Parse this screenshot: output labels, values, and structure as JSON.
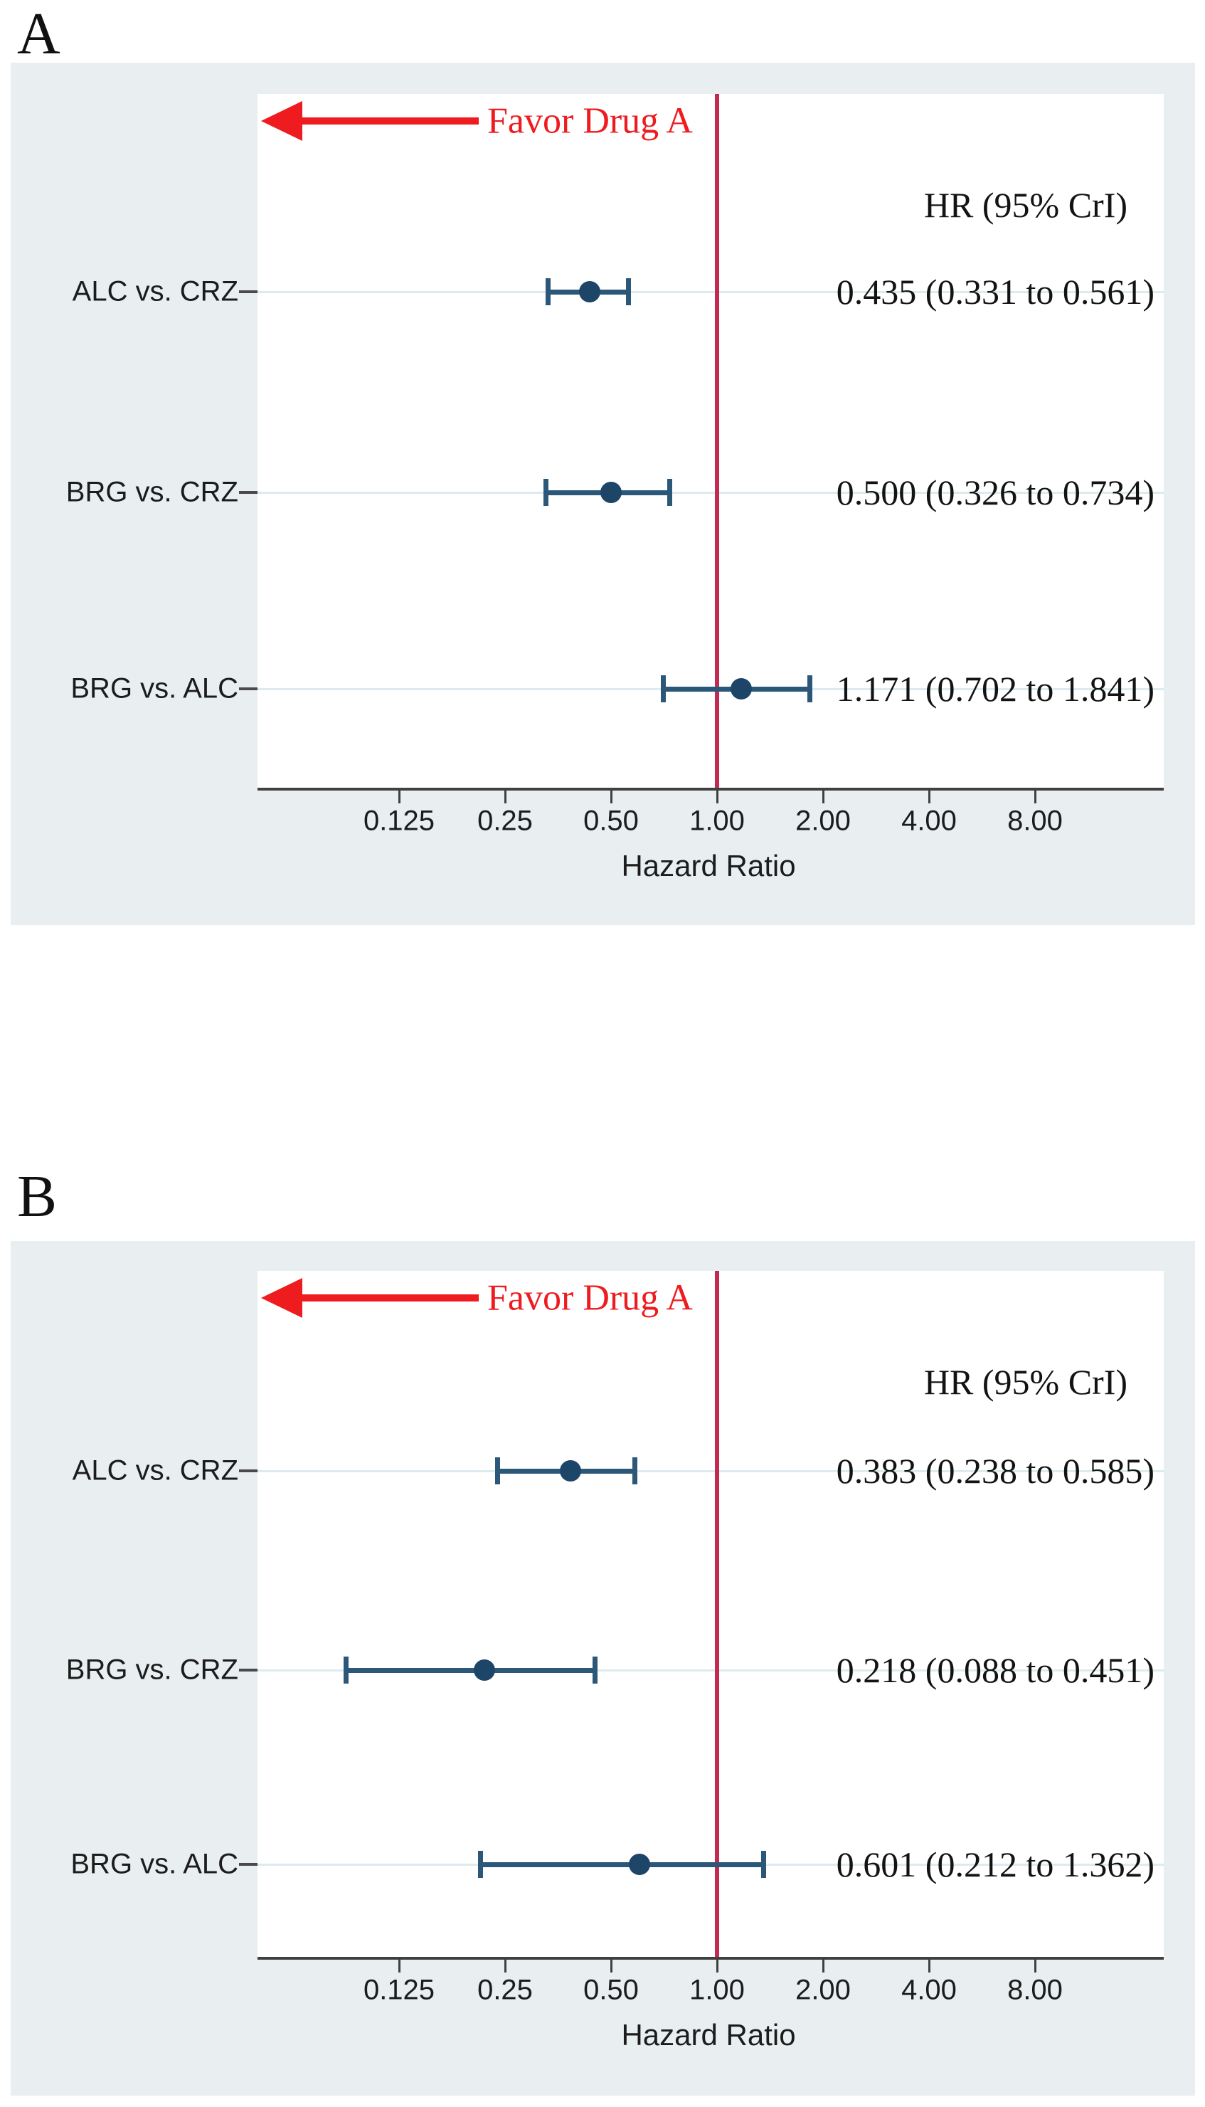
{
  "figure": {
    "panels": [
      {
        "label": "A",
        "favor_label": "Favor Drug A",
        "col_header": "HR (95% CrI)",
        "xlabel": "Hazard Ratio",
        "x_tick_labels": [
          "0.125",
          "0.25",
          "0.50",
          "1.00",
          "2.00",
          "4.00",
          "8.00"
        ],
        "rows": [
          {
            "label": "ALC vs. CRZ",
            "hr_text": "0.435 (0.331 to 0.561)"
          },
          {
            "label": "BRG vs. CRZ",
            "hr_text": "0.500 (0.326 to 0.734)"
          },
          {
            "label": "BRG vs. ALC",
            "hr_text": "1.171 (0.702 to 1.841)"
          }
        ]
      },
      {
        "label": "B",
        "favor_label": "Favor Drug A",
        "col_header": "HR (95% CrI)",
        "xlabel": "Hazard Ratio",
        "x_tick_labels": [
          "0.125",
          "0.25",
          "0.50",
          "1.00",
          "2.00",
          "4.00",
          "8.00"
        ],
        "rows": [
          {
            "label": "ALC vs. CRZ",
            "hr_text": "0.383 (0.238 to 0.585)"
          },
          {
            "label": "BRG vs. CRZ",
            "hr_text": "0.218 (0.088 to 0.451)"
          },
          {
            "label": "BRG vs. ALC",
            "hr_text": "0.601 (0.212 to 1.362)"
          }
        ]
      }
    ],
    "colors": {
      "panel_background": "#e9eff1",
      "plot_background": "#ffffff",
      "marker_navy": "#2b5878",
      "dot_navy": "#1d4568",
      "arrow_red": "#ee1b1f",
      "reference_line_red": "#c22a52",
      "guide_line": "#dcebed",
      "axis": "#404040"
    }
  },
  "chart_data": [
    {
      "type": "scatter",
      "subtype": "forest-plot",
      "title": "A",
      "xlabel": "Hazard Ratio",
      "x_scale": "log2",
      "x_ticks": [
        0.125,
        0.25,
        0.5,
        1.0,
        2.0,
        4.0,
        8.0
      ],
      "reference_line_x": 1.0,
      "annotation": "Favor Drug A",
      "value_column_header": "HR (95% CrI)",
      "categories": [
        "ALC vs. CRZ",
        "BRG vs. CRZ",
        "BRG vs. ALC"
      ],
      "series": [
        {
          "name": "HR",
          "values": [
            0.435,
            0.5,
            1.171
          ]
        }
      ],
      "ci_low": [
        0.331,
        0.326,
        0.702
      ],
      "ci_high": [
        0.561,
        0.734,
        1.841
      ],
      "value_labels": [
        "0.435 (0.331 to 0.561)",
        "0.500 (0.326 to 0.734)",
        "1.171 (0.702 to 1.841)"
      ],
      "grid": false,
      "legend": false
    },
    {
      "type": "scatter",
      "subtype": "forest-plot",
      "title": "B",
      "xlabel": "Hazard Ratio",
      "x_scale": "log2",
      "x_ticks": [
        0.125,
        0.25,
        0.5,
        1.0,
        2.0,
        4.0,
        8.0
      ],
      "reference_line_x": 1.0,
      "annotation": "Favor Drug A",
      "value_column_header": "HR (95% CrI)",
      "categories": [
        "ALC vs. CRZ",
        "BRG vs. CRZ",
        "BRG vs. ALC"
      ],
      "series": [
        {
          "name": "HR",
          "values": [
            0.383,
            0.218,
            0.601
          ]
        }
      ],
      "ci_low": [
        0.238,
        0.088,
        0.212
      ],
      "ci_high": [
        0.585,
        0.451,
        1.362
      ],
      "value_labels": [
        "0.383 (0.238 to 0.585)",
        "0.218 (0.088 to 0.451)",
        "0.601 (0.212 to 1.362)"
      ],
      "grid": false,
      "legend": false
    }
  ]
}
